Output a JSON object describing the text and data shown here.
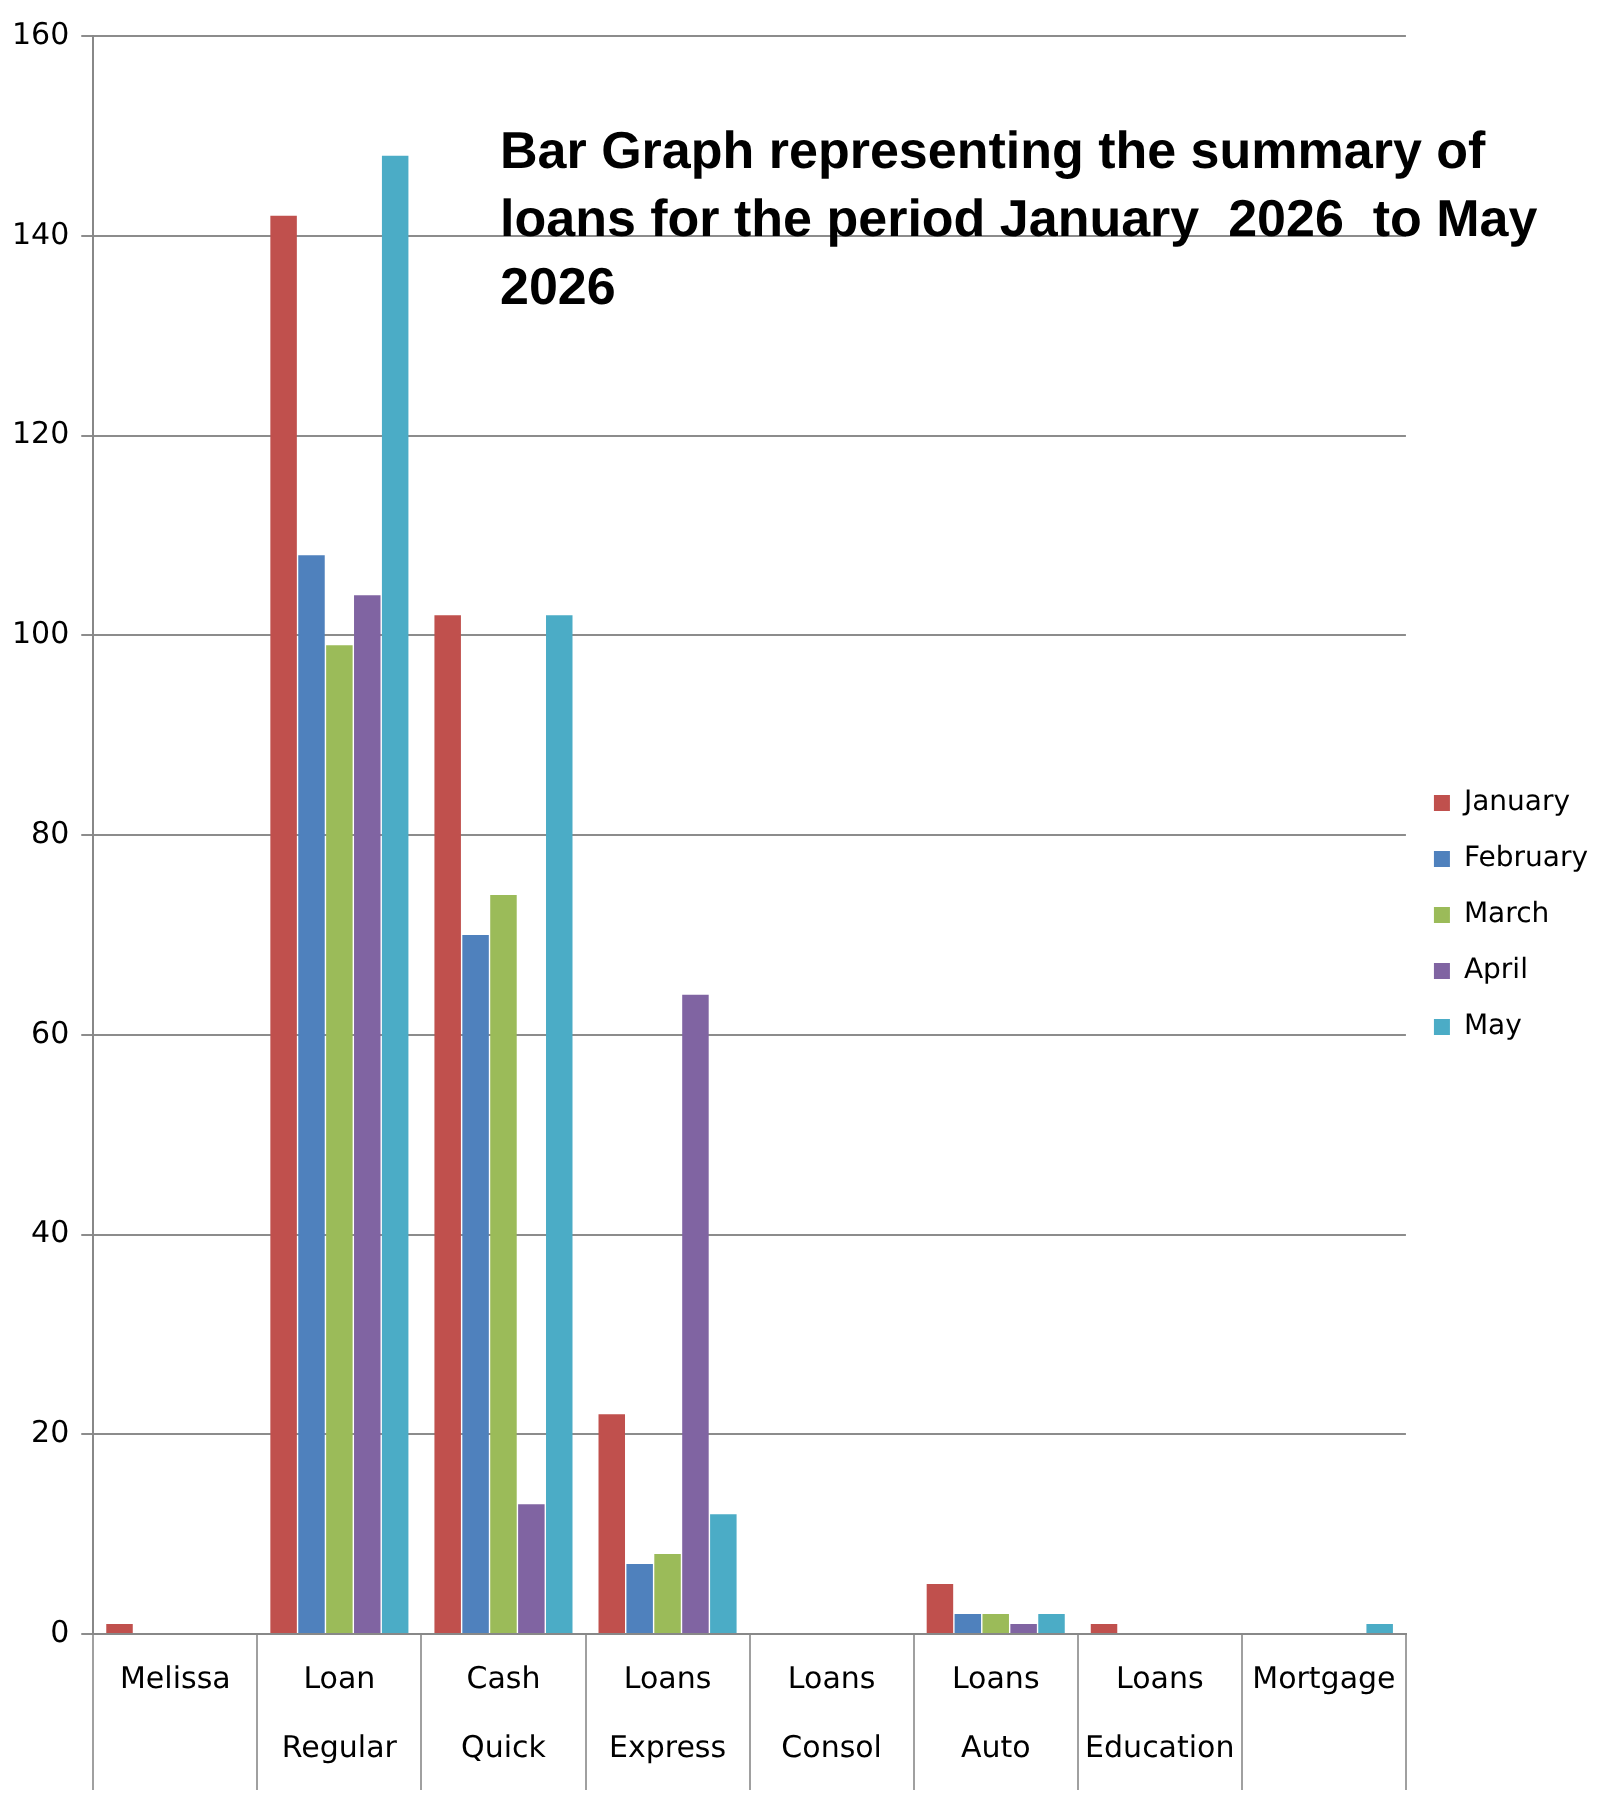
{
  "chart_data": {
    "type": "bar",
    "title": "Bar Graph representing the summary of loans for the period January  2026  to May 2026",
    "categories": [
      "Melissa",
      "Loan Regular",
      "Cash Quick",
      "Loans Express",
      "Loans Consol",
      "Loans Auto",
      "Loans Education",
      "Mortgage"
    ],
    "series": [
      {
        "name": "January",
        "color": "#c0504d",
        "values": [
          1,
          142,
          102,
          22,
          0,
          5,
          1,
          0
        ]
      },
      {
        "name": "February",
        "color": "#4f81bd",
        "values": [
          0,
          108,
          70,
          7,
          0,
          2,
          0,
          0
        ]
      },
      {
        "name": "March",
        "color": "#9bbb59",
        "values": [
          0,
          99,
          74,
          8,
          0,
          2,
          0,
          0
        ]
      },
      {
        "name": "April",
        "color": "#8064a2",
        "values": [
          0,
          104,
          13,
          64,
          0,
          1,
          0,
          0
        ]
      },
      {
        "name": "May",
        "color": "#4bacc6",
        "values": [
          0,
          148,
          102,
          12,
          0,
          2,
          0,
          1
        ]
      }
    ],
    "ylim": [
      0,
      160
    ],
    "yticks": [
      0,
      20,
      40,
      60,
      80,
      100,
      120,
      140,
      160
    ],
    "grid": "y",
    "legend": "right"
  }
}
